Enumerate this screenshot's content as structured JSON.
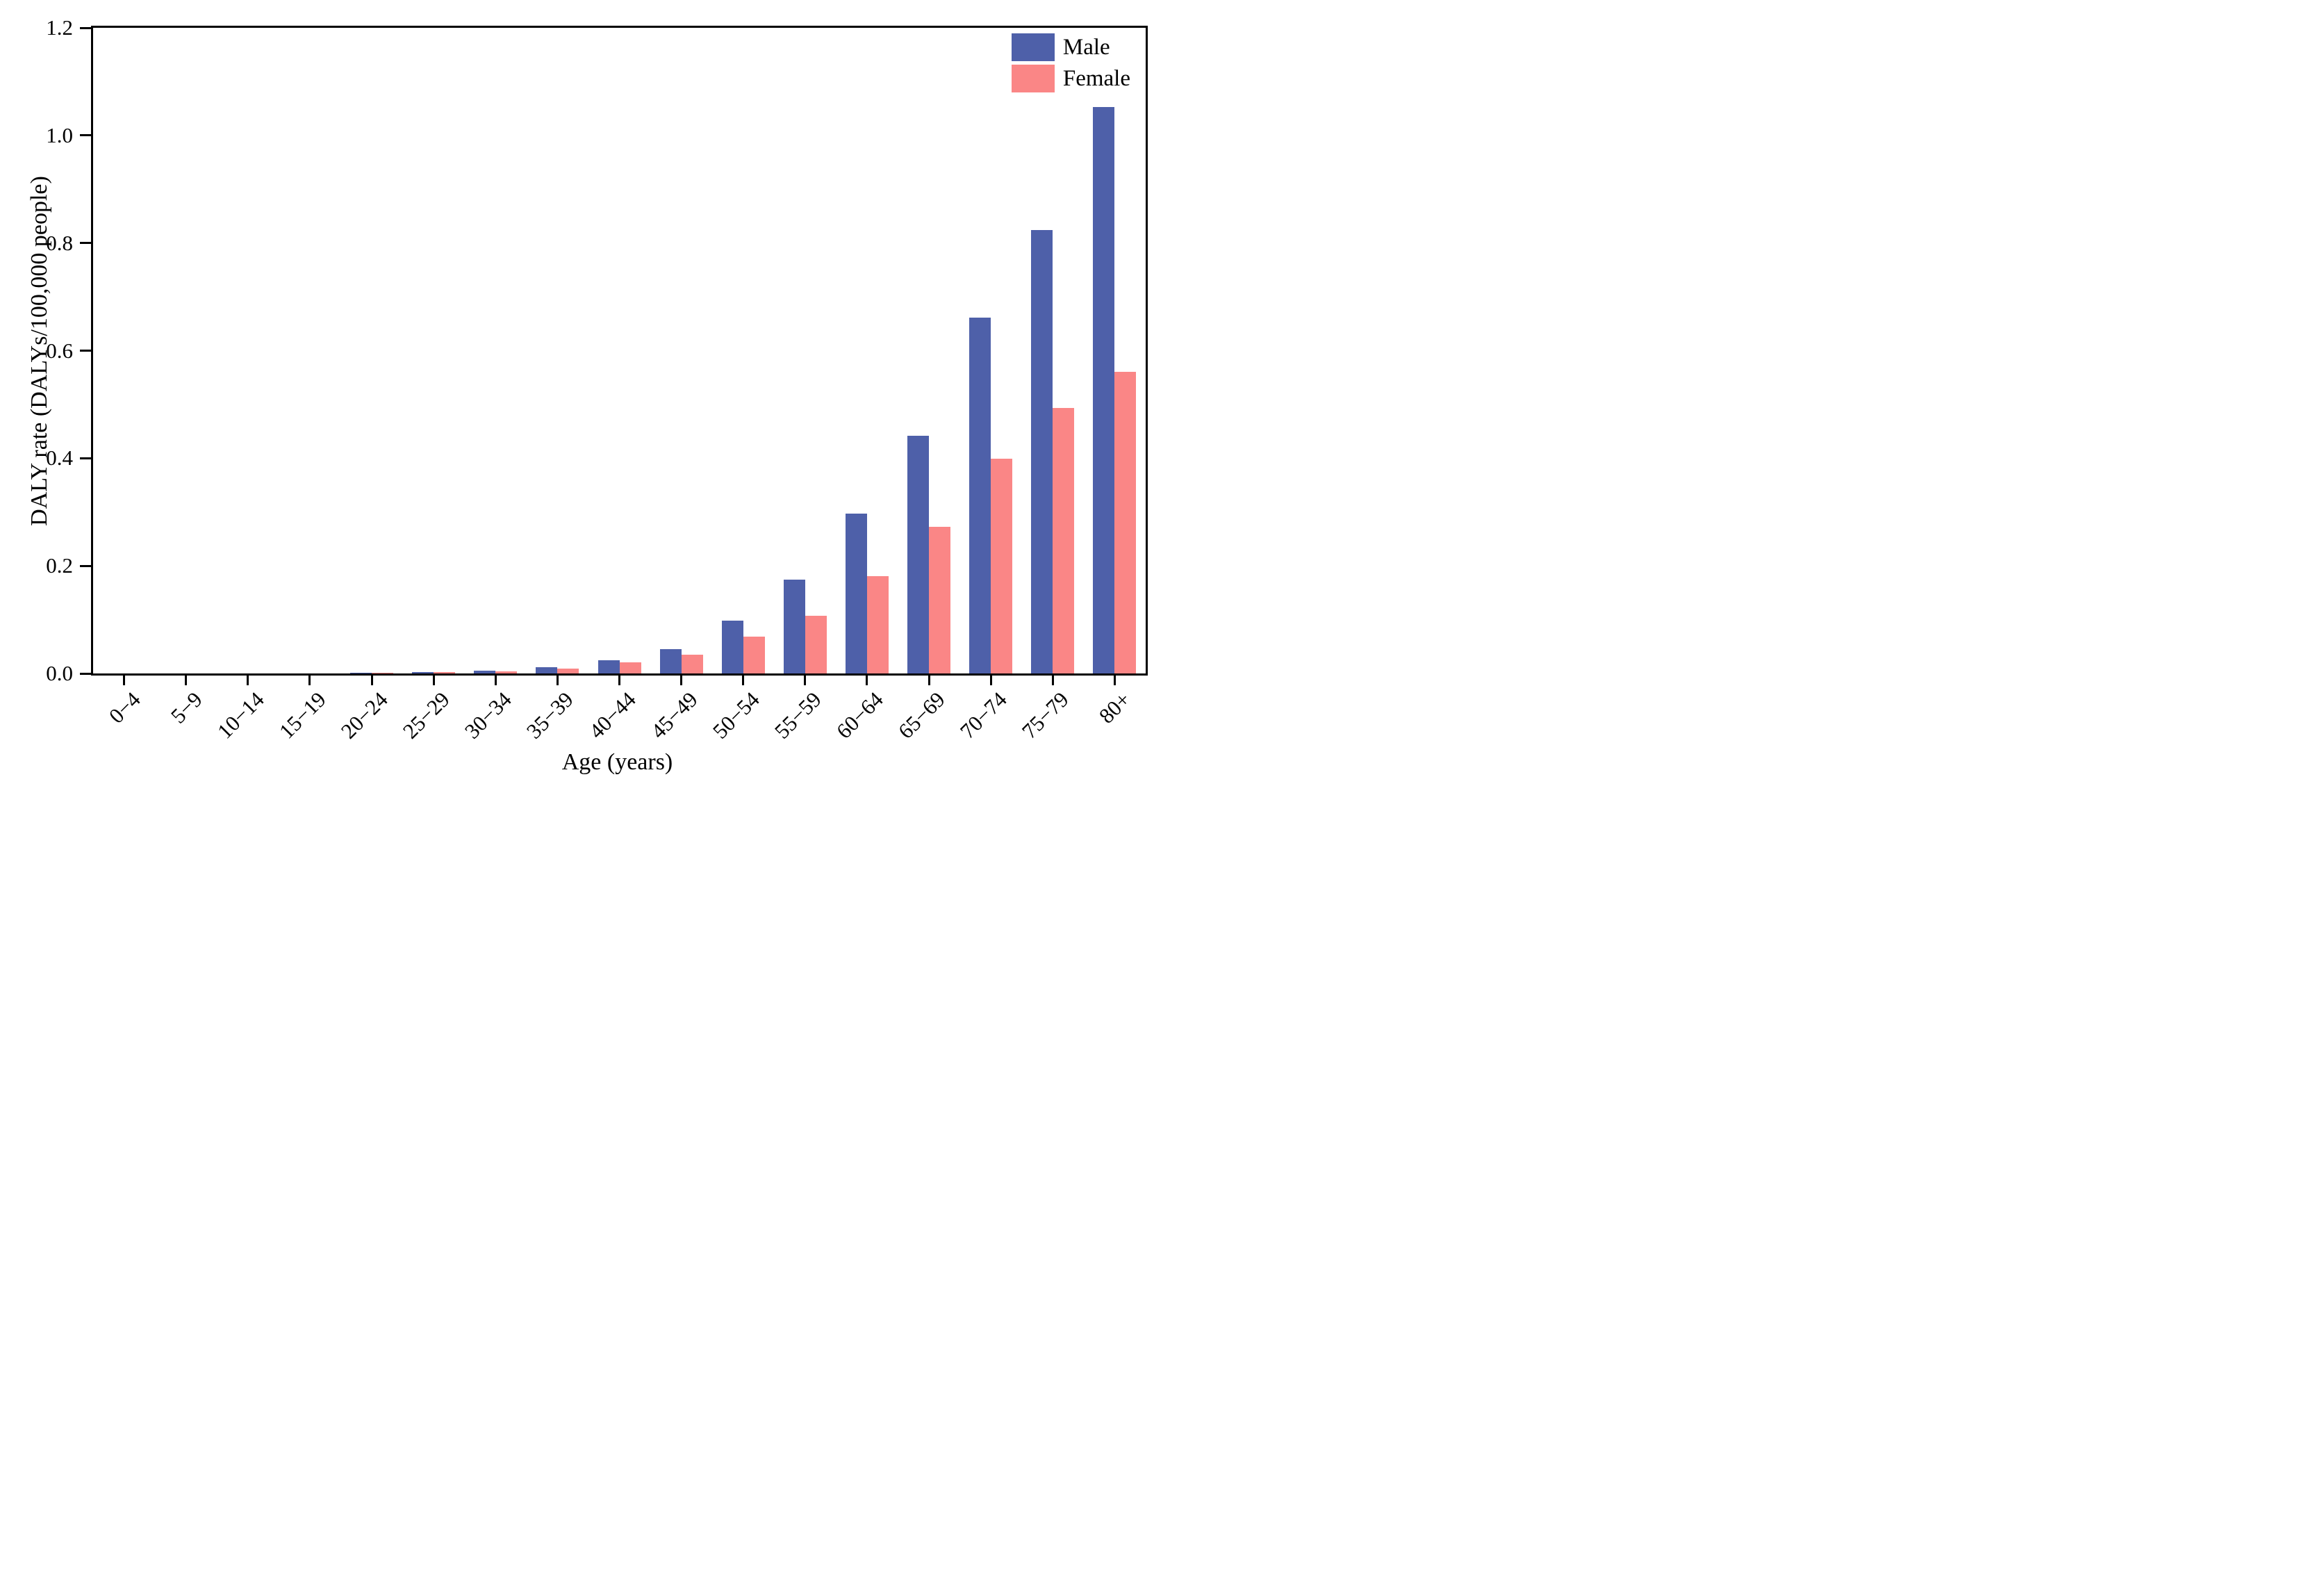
{
  "chart_data": {
    "type": "bar",
    "title": "",
    "xlabel": "Age (years)",
    "ylabel": "DALY rate (DALYs/100,000 people)",
    "ylim": [
      0,
      1.2
    ],
    "grid": false,
    "legend_position": "upper right",
    "y_ticks": [
      "0.0",
      "0.2",
      "0.4",
      "0.6",
      "0.8",
      "1.0",
      "1.2"
    ],
    "categories": [
      "0−4",
      "5−9",
      "10−14",
      "15−19",
      "20−24",
      "25−29",
      "30−34",
      "35−39",
      "40−44",
      "45−49",
      "50−54",
      "55−59",
      "60−64",
      "65−69",
      "70−74",
      "75−79",
      "80+"
    ],
    "series": [
      {
        "name": "Male",
        "color": "#4e60a9",
        "values": [
          0.0,
          0.0,
          0.0,
          0.0,
          0.001,
          0.002,
          0.005,
          0.011,
          0.025,
          0.045,
          0.098,
          0.174,
          0.297,
          0.442,
          0.661,
          0.824,
          1.053
        ]
      },
      {
        "name": "Female",
        "color": "#fa8686",
        "values": [
          0.0,
          0.0,
          0.0,
          0.0,
          0.001,
          0.002,
          0.004,
          0.009,
          0.021,
          0.035,
          0.068,
          0.107,
          0.181,
          0.272,
          0.399,
          0.493,
          0.56
        ]
      }
    ]
  }
}
